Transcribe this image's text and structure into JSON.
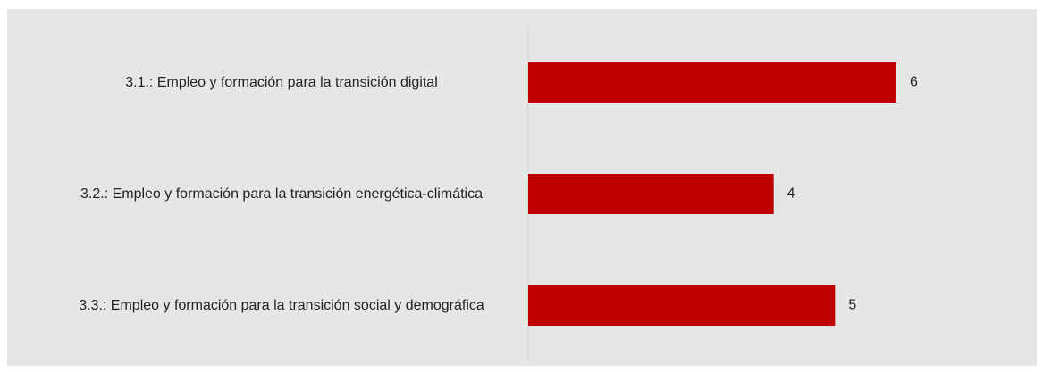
{
  "chart_data": {
    "type": "bar",
    "orientation": "horizontal",
    "categories": [
      "3.1.: Empleo y formación para la transición digital",
      "3.2.: Empleo y formación para la transición energética-climática",
      "3.3.: Empleo y formación para la transición social y demográfica"
    ],
    "values": [
      6,
      4,
      5
    ],
    "color": "#c00000"
  }
}
